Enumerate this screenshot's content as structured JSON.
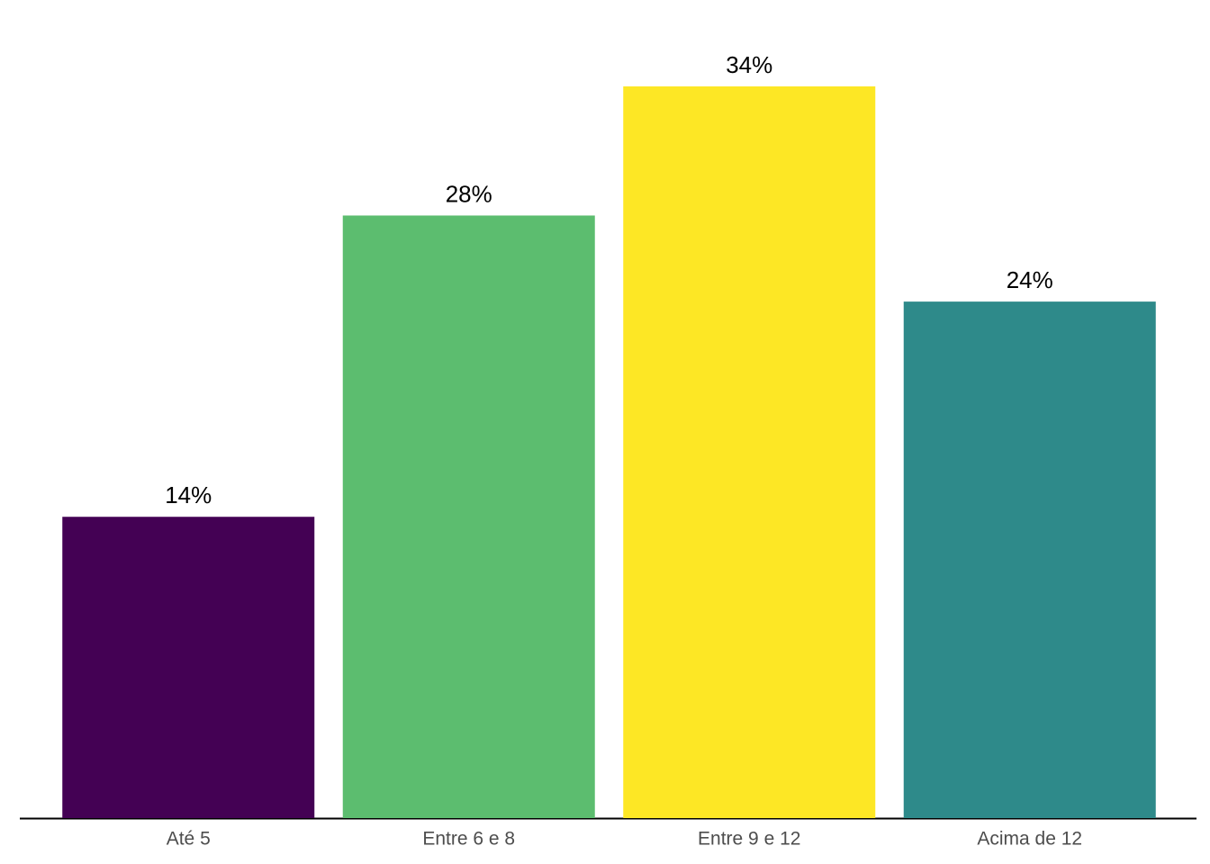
{
  "chart_data": {
    "type": "bar",
    "categories": [
      "Até 5",
      "Entre 6 e 8",
      "Entre 9 e 12",
      "Acima de 12"
    ],
    "values": [
      14,
      28,
      34,
      24
    ],
    "value_labels": [
      "14%",
      "28%",
      "34%",
      "24%"
    ],
    "colors": [
      "#440154",
      "#5cbd6f",
      "#fde725",
      "#2e8a8a"
    ]
  }
}
